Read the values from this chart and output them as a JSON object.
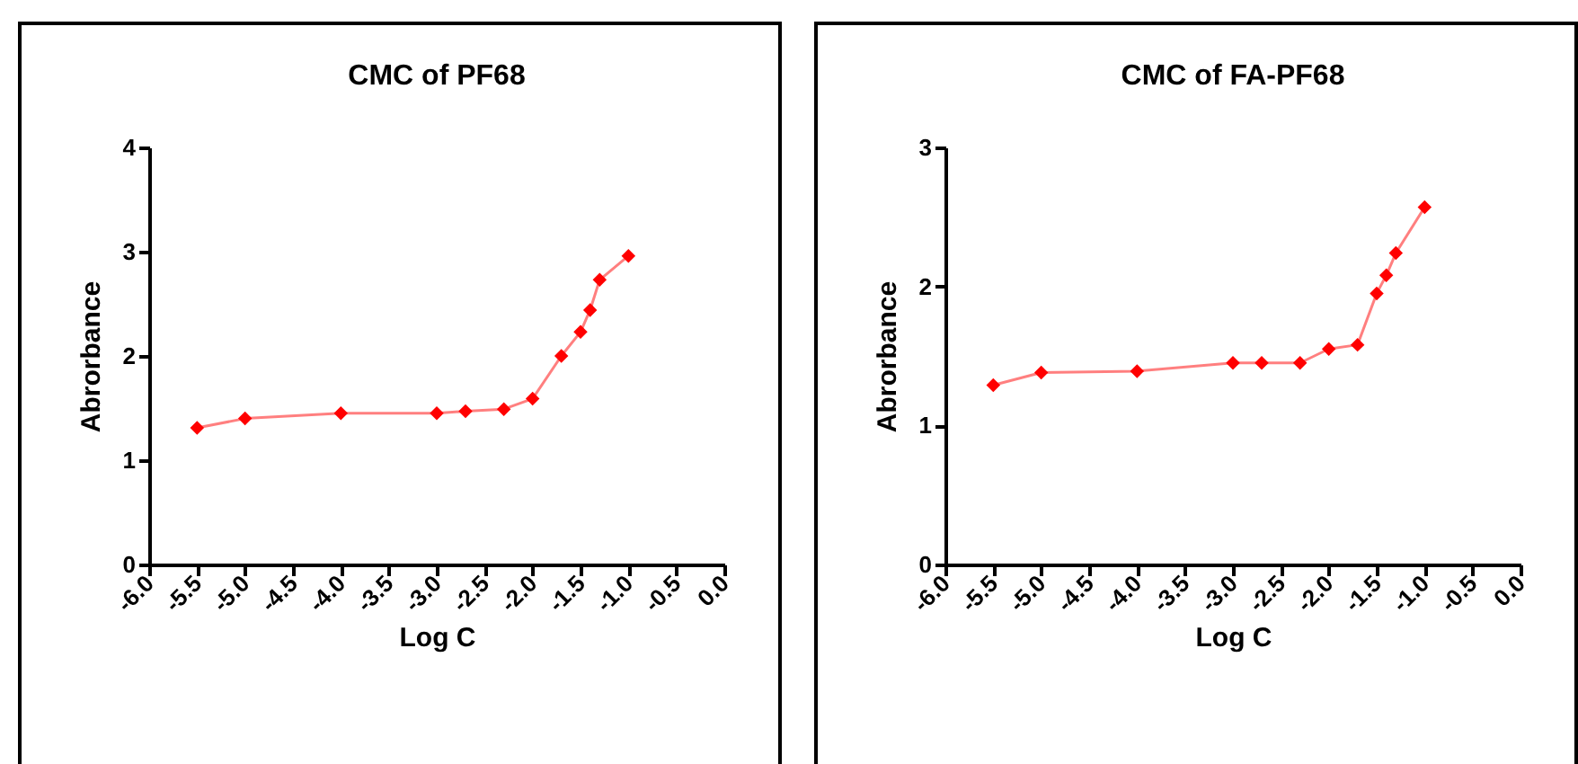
{
  "chart_data": [
    {
      "type": "line",
      "title": "CMC of PF68",
      "xlabel": "Log C",
      "ylabel": "Abrorbance",
      "x": [
        -5.5,
        -5.0,
        -4.0,
        -3.0,
        -2.7,
        -2.3,
        -2.0,
        -1.7,
        -1.5,
        -1.4,
        -1.3,
        -1.0
      ],
      "series": [
        {
          "color": "#ff0000",
          "values": [
            1.31,
            1.4,
            1.45,
            1.45,
            1.47,
            1.49,
            1.59,
            2.0,
            2.23,
            2.44,
            2.73,
            2.96
          ]
        }
      ],
      "xlim": [
        -6.0,
        0.0
      ],
      "xticks": [
        {
          "value": -6,
          "label": "-6.0"
        },
        {
          "value": -5.5,
          "label": "-5.5"
        },
        {
          "value": -5,
          "label": "-5.0"
        },
        {
          "value": -4.5,
          "label": "-4.5"
        },
        {
          "value": -4,
          "label": "-4.0"
        },
        {
          "value": -3.5,
          "label": "-3.5"
        },
        {
          "value": -3,
          "label": "-3.0"
        },
        {
          "value": -2.5,
          "label": "-2.5"
        },
        {
          "value": -2,
          "label": "-2.0"
        },
        {
          "value": -1.5,
          "label": "-1.5"
        },
        {
          "value": -1,
          "label": "-1.0"
        },
        {
          "value": -0.5,
          "label": "-0.5"
        },
        {
          "value": 0,
          "label": "0.0"
        }
      ],
      "ylim": [
        0,
        4
      ],
      "yticks": [
        0,
        1,
        2,
        3,
        4
      ],
      "grid": false,
      "legend": false,
      "marker": "diamond",
      "line_style": "solid"
    },
    {
      "type": "line",
      "title": "CMC of FA-PF68",
      "xlabel": "Log C",
      "ylabel": "Abrorbance",
      "x": [
        -5.5,
        -5.0,
        -4.0,
        -3.0,
        -2.7,
        -2.3,
        -2.0,
        -1.7,
        -1.5,
        -1.4,
        -1.3,
        -1.0
      ],
      "series": [
        {
          "color": "#ff0000",
          "values": [
            1.29,
            1.38,
            1.39,
            1.45,
            1.45,
            1.45,
            1.55,
            1.58,
            1.95,
            2.08,
            2.24,
            2.57
          ]
        }
      ],
      "xlim": [
        -6.0,
        0.0
      ],
      "xticks": [
        {
          "value": -6,
          "label": "-6.0"
        },
        {
          "value": -5.5,
          "label": "-5.5"
        },
        {
          "value": -5,
          "label": "-5.0"
        },
        {
          "value": -4.5,
          "label": "-4.5"
        },
        {
          "value": -4,
          "label": "-4.0"
        },
        {
          "value": -3.5,
          "label": "-3.5"
        },
        {
          "value": -3,
          "label": "-3.0"
        },
        {
          "value": -2.5,
          "label": "-2.5"
        },
        {
          "value": -2,
          "label": "-2.0"
        },
        {
          "value": -1.5,
          "label": "-1.5"
        },
        {
          "value": -1,
          "label": "-1.0"
        },
        {
          "value": -0.5,
          "label": "-0.5"
        },
        {
          "value": 0,
          "label": "0.0"
        }
      ],
      "ylim": [
        0,
        3
      ],
      "yticks": [
        0,
        1,
        2,
        3
      ],
      "grid": false,
      "legend": false,
      "marker": "diamond",
      "line_style": "solid"
    }
  ]
}
